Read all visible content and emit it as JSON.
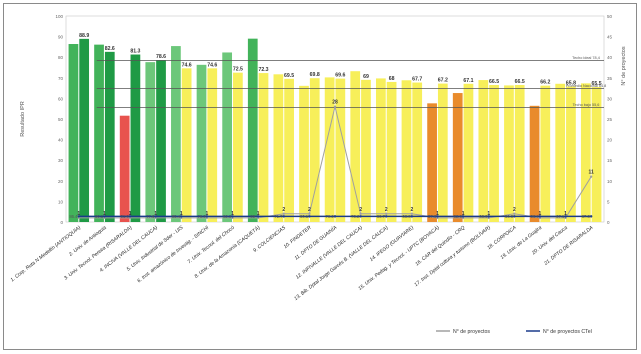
{
  "chart_data": {
    "type": "bar",
    "ylabel": "Resultado IPR",
    "y2label": "N° de proyectos",
    "ylim": [
      0,
      100
    ],
    "y_ticks": [
      0,
      10,
      20,
      30,
      40,
      50,
      60,
      70,
      80,
      90,
      100
    ],
    "y2lim": [
      0,
      50
    ],
    "y2_ticks": [
      0,
      5,
      10,
      15,
      20,
      25,
      30,
      35,
      40,
      45,
      50
    ],
    "categories": [
      "1. Corp. Ruta N Medellín (ANTIOQUIA)",
      "2. Univ. de Antioquia",
      "3. Univ. Tecnol. Pereira (RISARALDA)",
      "4. INCIVA (VALLE DEL CAUCA)",
      "5. Univ. Industrial de Sder - UIS",
      "6. Inst. amazónico de Investig. - SINCHI",
      "7. Univ. Tecnol. del Chocó",
      "8. Univ. de la Amazonía (CAQUETÁ)",
      "9. COLCIENCIAS",
      "10. FINDETER",
      "11. DPTO DE GUAINÍA",
      "12. INFIVALLE (VALLE DEL CAUCA)",
      "13. Bib. Dptal Jorge Garcés B. (VALLE DEL CAUCA)",
      "14. IFEGO (GUAVIARE)",
      "15. Univ. Pedag. y Tecnol. - UPTC (BOYACÁ)",
      "16. CAR del Quindío - CRQ",
      "17. Inst. Dptal cultura y turismo (BOLÍVAR)",
      "18. CORPOICA",
      "19. Univ. de La Guajira",
      "20. Univ. del Cauca",
      "21. DPTO DE RISARALDA"
    ],
    "label_values": [
      88.9,
      82.6,
      81.3,
      78.6,
      74.6,
      74.6,
      72.5,
      72.3,
      69.5,
      69.8,
      69.6,
      69.0,
      68.0,
      67.7,
      67.2,
      67.1,
      66.5,
      66.5,
      66.2,
      65.8,
      65.5
    ],
    "pairs": [
      {
        "left": 86.4,
        "right": 88.9,
        "left_color": "#42b35a",
        "right_color": "#1f9a45"
      },
      {
        "left": 86.1,
        "right": 82.6,
        "left_color": "#42b35a",
        "right_color": "#1f9a45"
      },
      {
        "left": 51.6,
        "right": 81.3,
        "left_color": "#e8534e",
        "right_color": "#1f9a45"
      },
      {
        "left": 77.6,
        "right": 78.6,
        "left_color": "#6cc77a",
        "right_color": "#1f9a45"
      },
      {
        "left": 85.4,
        "right": 74.6,
        "left_color": "#6cc77a",
        "right_color": "#f7ef5a"
      },
      {
        "left": 76.3,
        "right": 74.6,
        "left_color": "#6cc77a",
        "right_color": "#f7ef5a"
      },
      {
        "left": 82.3,
        "right": 72.5,
        "left_color": "#6cc77a",
        "right_color": "#f7ef5a"
      },
      {
        "left": 89.0,
        "right": 72.3,
        "left_color": "#42b35a",
        "right_color": "#f7ef5a"
      },
      {
        "left": 71.7,
        "right": 69.5,
        "left_color": "#f7ef5a",
        "right_color": "#f7ef5a"
      },
      {
        "left": 66.1,
        "right": 69.8,
        "left_color": "#f7ef5a",
        "right_color": "#f7ef5a"
      },
      {
        "left": 70.2,
        "right": 69.6,
        "left_color": "#f7ef5a",
        "right_color": "#f7ef5a"
      },
      {
        "left": 73.2,
        "right": 69.0,
        "left_color": "#f7ef5a",
        "right_color": "#f7ef5a"
      },
      {
        "left": 69.7,
        "right": 68.0,
        "left_color": "#f7ef5a",
        "right_color": "#f7ef5a"
      },
      {
        "left": 68.8,
        "right": 67.7,
        "left_color": "#f7ef5a",
        "right_color": "#f7ef5a"
      },
      {
        "left": 57.6,
        "right": 67.2,
        "left_color": "#e98b2c",
        "right_color": "#f7ef5a"
      },
      {
        "left": 62.6,
        "right": 67.1,
        "left_color": "#e98b2c",
        "right_color": "#f7ef5a"
      },
      {
        "left": 68.9,
        "right": 66.5,
        "left_color": "#f7ef5a",
        "right_color": "#f7ef5a"
      },
      {
        "left": 66.3,
        "right": 66.5,
        "left_color": "#f7ef5a",
        "right_color": "#f7ef5a"
      },
      {
        "left": 56.4,
        "right": 66.2,
        "left_color": "#e98b2c",
        "right_color": "#f7ef5a"
      },
      {
        "left": 67.1,
        "right": 65.8,
        "left_color": "#f7ef5a",
        "right_color": "#f7ef5a"
      },
      {
        "left": 67.3,
        "right": 65.5,
        "left_color": "#f7ef5a",
        "right_color": "#f7ef5a"
      }
    ],
    "series": [
      {
        "name": "N° de proyectos",
        "color": "#a0a0a0",
        "values": [
          1,
          1,
          1,
          1,
          1,
          1,
          1,
          1,
          2,
          2,
          28,
          2,
          2,
          2,
          1,
          1,
          1,
          2,
          1,
          1,
          11
        ]
      },
      {
        "name": "N° de proyectos CTel",
        "color": "#1a3a8a",
        "values": [
          1,
          1,
          1,
          1,
          1,
          1,
          1,
          1,
          1,
          1,
          1,
          1,
          1,
          1,
          1,
          1,
          1,
          1,
          1,
          1,
          1
        ]
      }
    ],
    "reference_lines": [
      {
        "label": "Techo ideal 78,4",
        "value": 78.4
      },
      {
        "label": "Promedio Nacional 64,8",
        "value": 64.8
      },
      {
        "label": "Techo bajo 55,6",
        "value": 55.6
      }
    ],
    "legend": [
      {
        "label": "N° de proyectos",
        "color": "#a0a0a0"
      },
      {
        "label": "N° de proyectos CTel",
        "color": "#1a3a8a"
      }
    ],
    "legend_position": "bottom-right",
    "grid": false
  }
}
